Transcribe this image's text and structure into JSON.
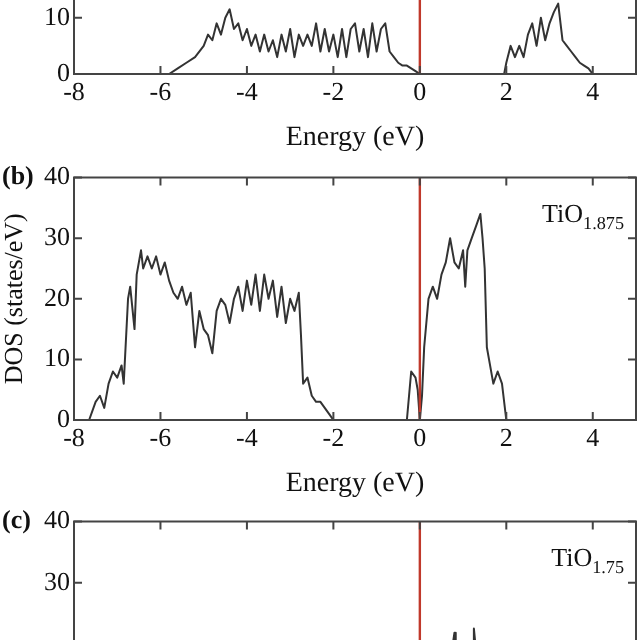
{
  "chart_data": [
    {
      "type": "line",
      "xlabel": "Energy (eV)",
      "xlim": [
        -8,
        5
      ],
      "xticks": [
        -8,
        -6,
        -4,
        -2,
        0,
        2,
        4
      ],
      "ylim": [
        0,
        15
      ],
      "yticks": [
        0,
        10
      ],
      "marker": "none",
      "legend": false,
      "grid": false,
      "ref_lines": [
        {
          "axis": "x",
          "value": 0,
          "color": "#c0392b"
        }
      ],
      "series": [
        {
          "color": "#333333",
          "x": [
            -5.8,
            -5.6,
            -5.4,
            -5.2,
            -5.0,
            -4.9,
            -4.8,
            -4.7,
            -4.6,
            -4.5,
            -4.4,
            -4.3,
            -4.2,
            -4.1,
            -4.0,
            -3.9,
            -3.8,
            -3.7,
            -3.6,
            -3.5,
            -3.4,
            -3.3,
            -3.2,
            -3.1,
            -3.0,
            -2.9,
            -2.8,
            -2.7,
            -2.6,
            -2.5,
            -2.4,
            -2.3,
            -2.2,
            -2.1,
            -2.0,
            -1.9,
            -1.8,
            -1.7,
            -1.6,
            -1.5,
            -1.4,
            -1.3,
            -1.2,
            -1.1,
            -1.0,
            -0.9,
            -0.8,
            -0.7,
            -0.6,
            -0.5,
            -0.4,
            -0.3,
            -0.2,
            -0.1,
            0.0,
            1.0,
            1.95,
            2.0,
            2.1,
            2.2,
            2.3,
            2.4,
            2.5,
            2.6,
            2.7,
            2.8,
            2.9,
            3.0,
            3.1,
            3.2,
            3.3,
            3.4,
            3.5,
            3.6,
            3.7,
            3.8,
            3.9,
            4.0
          ],
          "values": [
            0,
            1,
            2,
            3,
            5,
            7,
            6,
            9,
            7,
            10,
            11.5,
            8,
            9,
            6,
            8,
            5,
            7,
            4,
            7,
            4,
            6,
            3,
            7,
            4,
            8,
            3,
            7,
            5,
            7,
            5,
            9,
            4,
            8,
            4,
            7,
            3,
            8,
            3,
            8,
            9,
            4,
            8,
            3,
            9,
            4,
            8,
            9,
            4,
            3,
            2,
            1.5,
            1.5,
            1,
            0.5,
            0,
            null,
            0,
            2,
            5,
            3,
            5,
            3,
            7,
            9,
            5,
            10,
            6,
            9,
            11,
            12.5,
            6,
            5,
            4,
            3,
            2,
            1.5,
            1,
            0
          ]
        }
      ]
    },
    {
      "type": "line",
      "ylabel": "DOS (states/eV)",
      "title": "TiO$_{1.875}$",
      "xlabel": "Energy (eV)",
      "xlim": [
        -8,
        5
      ],
      "xticks": [
        -8,
        -6,
        -4,
        -2,
        0,
        2,
        4
      ],
      "ylim": [
        0,
        40
      ],
      "yticks": [
        0,
        10,
        20,
        30,
        40
      ],
      "marker": "none",
      "legend": false,
      "grid": false,
      "annotations": [
        "(b)"
      ],
      "ref_lines": [
        {
          "axis": "x",
          "value": 0,
          "color": "#c0392b"
        }
      ],
      "series": [
        {
          "color": "#333333",
          "x": [
            -7.65,
            -7.5,
            -7.4,
            -7.3,
            -7.2,
            -7.1,
            -7.0,
            -6.9,
            -6.85,
            -6.75,
            -6.7,
            -6.6,
            -6.55,
            -6.45,
            -6.4,
            -6.3,
            -6.2,
            -6.1,
            -6.0,
            -5.9,
            -5.8,
            -5.7,
            -5.6,
            -5.5,
            -5.4,
            -5.3,
            -5.2,
            -5.1,
            -5.0,
            -4.9,
            -4.8,
            -4.7,
            -4.6,
            -4.5,
            -4.4,
            -4.3,
            -4.2,
            -4.1,
            -4.0,
            -3.9,
            -3.8,
            -3.7,
            -3.6,
            -3.5,
            -3.4,
            -3.3,
            -3.2,
            -3.1,
            -3.0,
            -2.9,
            -2.8,
            -2.75,
            -2.7,
            -2.6,
            -2.5,
            -2.4,
            -2.3,
            -2.2,
            -2.1,
            -2.0,
            -1.0,
            -0.3,
            -0.2,
            -0.1,
            -0.05,
            0.0,
            0.05,
            0.1,
            0.2,
            0.3,
            0.4,
            0.5,
            0.6,
            0.7,
            0.8,
            0.9,
            1.0,
            1.05,
            1.1,
            1.2,
            1.3,
            1.4,
            1.45,
            1.5,
            1.55,
            1.6,
            1.7,
            1.8,
            1.9,
            2.0
          ],
          "values": [
            0,
            3,
            4,
            2,
            6,
            8,
            7,
            9,
            6,
            20,
            22,
            15,
            24,
            28,
            25,
            27,
            25,
            27,
            24,
            26,
            23,
            21,
            20,
            22,
            19,
            21,
            12,
            18,
            15,
            14,
            11,
            18,
            20,
            19,
            16,
            20,
            22,
            18,
            23,
            19,
            24,
            18,
            24,
            20,
            23,
            17,
            22,
            16,
            20,
            18,
            21,
            14,
            6,
            7,
            4,
            3,
            3,
            2,
            1,
            0,
            null,
            0,
            8,
            7,
            5,
            0,
            4,
            12,
            20,
            22,
            20,
            24,
            26,
            30,
            26,
            25,
            28,
            22,
            28,
            30,
            32,
            34,
            30,
            25,
            12,
            10,
            6,
            8,
            6,
            0
          ]
        }
      ]
    },
    {
      "type": "line",
      "title": "TiO$_{1.75}$",
      "xlim": [
        -8,
        5
      ],
      "xticks": [
        -8,
        -6,
        -4,
        -2,
        0,
        2,
        4
      ],
      "ylim": [
        0,
        40
      ],
      "yticks": [
        30,
        40
      ],
      "tick_labels": "y",
      "marker": "none",
      "legend": false,
      "grid": false,
      "annotations": [
        "(c)"
      ],
      "ref_lines": [
        {
          "axis": "x",
          "value": 0,
          "color": "#c0392b"
        }
      ],
      "series": [
        {
          "color": "#333333",
          "x": [
            0.77,
            0.8,
            0.83,
            1.0,
            1.22,
            1.25,
            1.28
          ],
          "values": [
            20.3,
            21.8,
            20.3,
            null,
            20.3,
            22.5,
            20.3
          ]
        }
      ]
    }
  ]
}
